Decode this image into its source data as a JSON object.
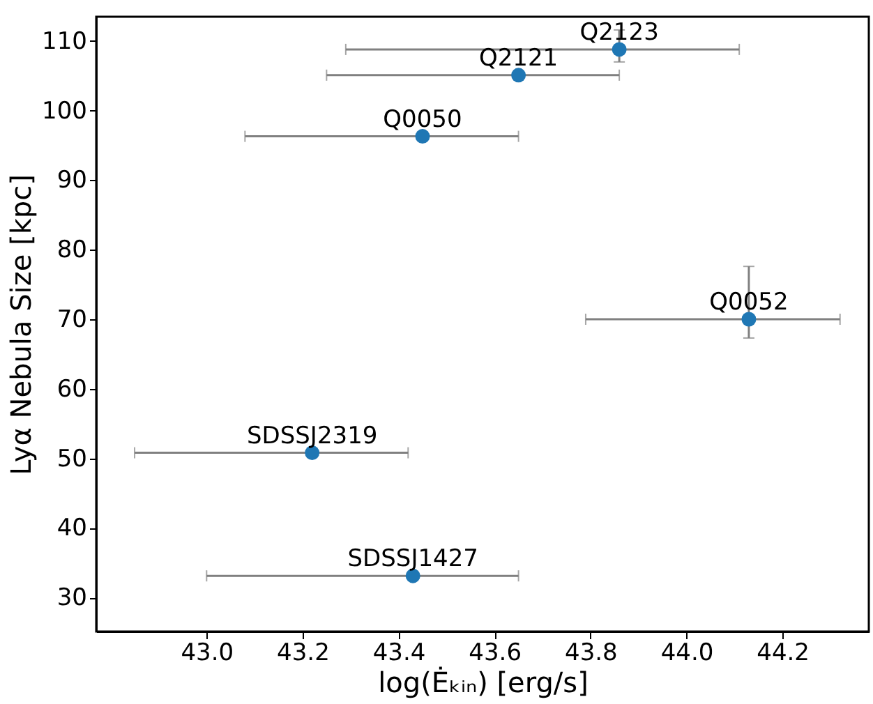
{
  "chart_data": {
    "type": "scatter",
    "xlabel": "log(Ėₖᵢₙ) [erg/s]",
    "ylabel": "Lyα Nebula Size [kpc]",
    "x": [
      43.86,
      43.65,
      43.45,
      44.13,
      43.22,
      43.43
    ],
    "values": [
      108.8,
      105.1,
      96.3,
      70.0,
      50.8,
      33.1
    ],
    "xerrors": [
      [
        43.29,
        44.11
      ],
      [
        43.25,
        43.86
      ],
      [
        43.08,
        43.65
      ],
      [
        43.79,
        44.32
      ],
      [
        42.85,
        43.42
      ],
      [
        43.0,
        43.65
      ]
    ],
    "errors": [
      [
        107.0,
        111.6
      ],
      null,
      null,
      [
        67.3,
        77.6
      ],
      null,
      null
    ],
    "color": "#1f77b4",
    "marker": "circle",
    "grid": false,
    "xlim": [
      42.77,
      44.38
    ],
    "ylim": [
      25.1,
      113.5
    ],
    "xticks": [
      {
        "value": 43,
        "label": "43.0"
      },
      43.2,
      43.4,
      43.6,
      43.8,
      {
        "value": 44,
        "label": "44.0"
      },
      44.2
    ],
    "yticks": [
      30,
      40,
      50,
      60,
      70,
      80,
      90,
      100,
      110
    ],
    "annotations": [
      {
        "text": "Q2123",
        "x": 43.86,
        "y": 108.8
      },
      {
        "text": "Q2121",
        "x": 43.65,
        "y": 105.1
      },
      {
        "text": "Q0050",
        "x": 43.45,
        "y": 96.3
      },
      {
        "text": "Q0052",
        "x": 44.13,
        "y": 70.0
      },
      {
        "text": "SDSSJ2319",
        "x": 43.22,
        "y": 50.8
      },
      {
        "text": "SDSSJ1427",
        "x": 43.43,
        "y": 33.1
      }
    ]
  }
}
